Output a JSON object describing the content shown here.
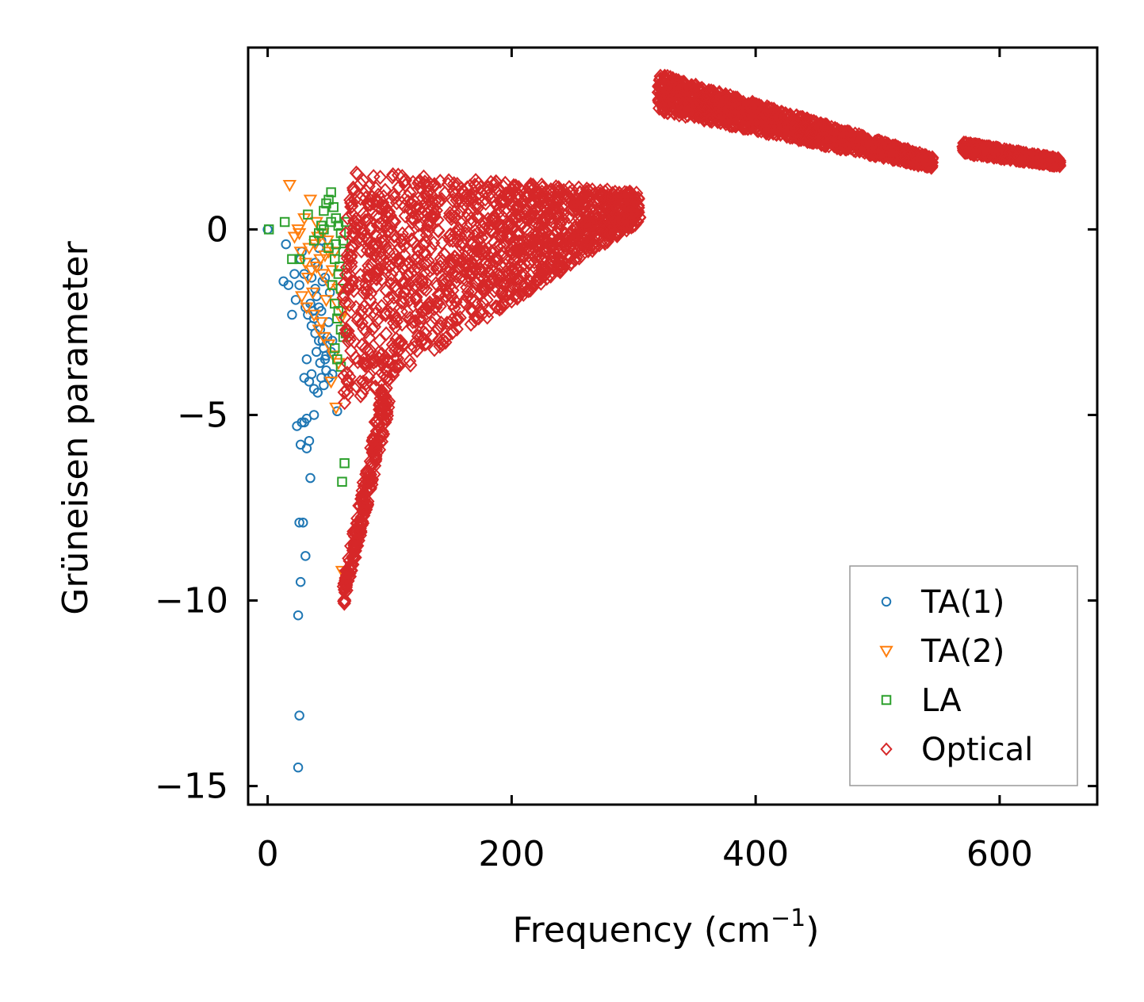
{
  "chart_data": {
    "type": "scatter",
    "title": "",
    "xlabel": "Frequency (cm",
    "xlabel_sup": "−1",
    "xlabel_close": ")",
    "ylabel": "Grüneisen parameter",
    "xlim": [
      -16,
      680
    ],
    "ylim": [
      -15.5,
      4.9
    ],
    "xticks": [
      {
        "value": 0,
        "label": "0"
      },
      {
        "value": 200,
        "label": "200"
      },
      {
        "value": 400,
        "label": "400"
      },
      {
        "value": 600,
        "label": "600"
      }
    ],
    "yticks": [
      {
        "value": 0,
        "label": "0"
      },
      {
        "value": -5,
        "label": "−5"
      },
      {
        "value": -10,
        "label": "−10"
      },
      {
        "value": -15,
        "label": "−15"
      }
    ],
    "legend_position": "bottom-right",
    "series": [
      {
        "name": "TA(1)",
        "label": "TA(1)",
        "marker": "circle",
        "color": "#1f77b4",
        "points": [
          [
            0,
            0
          ],
          [
            15,
            -0.4
          ],
          [
            13,
            -1.4
          ],
          [
            17,
            -1.5
          ],
          [
            20,
            -2.3
          ],
          [
            23,
            -1.9
          ],
          [
            26,
            -1.5
          ],
          [
            27,
            -0.8
          ],
          [
            28,
            -0.6
          ],
          [
            30,
            -1.2
          ],
          [
            31,
            -2.1
          ],
          [
            33,
            -2.3
          ],
          [
            35,
            -2.0
          ],
          [
            36,
            -2.6
          ],
          [
            38,
            -2.4
          ],
          [
            40,
            -1.8
          ],
          [
            41,
            -1.0
          ],
          [
            42,
            -0.5
          ],
          [
            43,
            -2.7
          ],
          [
            44,
            -2.2
          ],
          [
            45,
            -3.0
          ],
          [
            46,
            -3.2
          ],
          [
            47,
            -3.5
          ],
          [
            48,
            -3.8
          ],
          [
            49,
            -2.9
          ],
          [
            50,
            -2.5
          ],
          [
            51,
            -1.7
          ],
          [
            52,
            -3.3
          ],
          [
            53,
            -3.9
          ],
          [
            44,
            -4.0
          ],
          [
            41,
            -4.4
          ],
          [
            38,
            -4.3
          ],
          [
            36,
            -3.9
          ],
          [
            34,
            -4.1
          ],
          [
            32,
            -3.5
          ],
          [
            30,
            -4.0
          ],
          [
            43,
            -3.6
          ],
          [
            46,
            -4.2
          ],
          [
            40,
            -3.3
          ],
          [
            47,
            -1.3
          ],
          [
            44,
            -0.3
          ],
          [
            39,
            -0.9
          ],
          [
            24,
            -5.3
          ],
          [
            28,
            -5.2
          ],
          [
            30,
            -5.2
          ],
          [
            32,
            -5.1
          ],
          [
            38,
            -5.0
          ],
          [
            57,
            -4.9
          ],
          [
            34,
            -5.7
          ],
          [
            27,
            -5.8
          ],
          [
            32,
            -5.9
          ],
          [
            35,
            -6.7
          ],
          [
            26,
            -7.9
          ],
          [
            29,
            -7.9
          ],
          [
            31,
            -8.8
          ],
          [
            27,
            -9.5
          ],
          [
            25,
            -10.4
          ],
          [
            26,
            -13.1
          ],
          [
            25,
            -14.5
          ],
          [
            22,
            -1.2
          ],
          [
            36,
            -1.3
          ],
          [
            39,
            -1.6
          ],
          [
            42,
            -2.1
          ],
          [
            45,
            -1.4
          ],
          [
            48,
            -3.4
          ],
          [
            42,
            -3.0
          ],
          [
            39,
            -2.8
          ],
          [
            37,
            -2.2
          ],
          [
            50,
            -4.0
          ],
          [
            53,
            -3.0
          ]
        ]
      },
      {
        "name": "TA(2)",
        "label": "TA(2)",
        "marker": "triangle-down",
        "color": "#ff7f0e",
        "points": [
          [
            18,
            1.2
          ],
          [
            35,
            0.8
          ],
          [
            30,
            0.3
          ],
          [
            25,
            0.0
          ],
          [
            22,
            -0.2
          ],
          [
            27,
            -0.6
          ],
          [
            31,
            -0.9
          ],
          [
            33,
            -1.3
          ],
          [
            36,
            -1.1
          ],
          [
            39,
            -0.4
          ],
          [
            41,
            -0.2
          ],
          [
            43,
            -0.8
          ],
          [
            45,
            -1.2
          ],
          [
            47,
            -0.7
          ],
          [
            49,
            -0.3
          ],
          [
            51,
            -1.5
          ],
          [
            53,
            -1.1
          ],
          [
            55,
            -0.6
          ],
          [
            57,
            -2.0
          ],
          [
            60,
            -2.4
          ],
          [
            28,
            -1.8
          ],
          [
            32,
            -2.1
          ],
          [
            38,
            -2.3
          ],
          [
            42,
            -2.7
          ],
          [
            46,
            -2.9
          ],
          [
            50,
            -3.1
          ],
          [
            54,
            -3.4
          ],
          [
            58,
            -3.6
          ],
          [
            52,
            -4.1
          ],
          [
            56,
            -4.8
          ],
          [
            63,
            -9.3
          ],
          [
            61,
            -9.2
          ],
          [
            37,
            -1.7
          ],
          [
            40,
            -1.0
          ],
          [
            48,
            -1.9
          ],
          [
            58,
            -1.6
          ],
          [
            26,
            -0.1
          ],
          [
            34,
            -0.5
          ],
          [
            44,
            -2.5
          ],
          [
            62,
            -2.2
          ],
          [
            50,
            -0.6
          ],
          [
            45,
            -0.1
          ],
          [
            40,
            0.2
          ]
        ]
      },
      {
        "name": "LA",
        "label": "LA",
        "marker": "square",
        "color": "#2ca02c",
        "points": [
          [
            1,
            0.0
          ],
          [
            14,
            0.2
          ],
          [
            26,
            -0.8
          ],
          [
            20,
            -0.8
          ],
          [
            33,
            0.4
          ],
          [
            38,
            -0.3
          ],
          [
            42,
            -0.1
          ],
          [
            44,
            0.1
          ],
          [
            46,
            0.5
          ],
          [
            48,
            0.7
          ],
          [
            50,
            0.8
          ],
          [
            52,
            1.0
          ],
          [
            54,
            0.6
          ],
          [
            56,
            0.3
          ],
          [
            58,
            0.1
          ],
          [
            60,
            -0.1
          ],
          [
            62,
            -0.3
          ],
          [
            50,
            -0.5
          ],
          [
            55,
            -0.8
          ],
          [
            58,
            -1.2
          ],
          [
            60,
            -1.6
          ],
          [
            55,
            -2.0
          ],
          [
            57,
            -2.4
          ],
          [
            60,
            -2.7
          ],
          [
            62,
            -2.9
          ],
          [
            64,
            -2.8
          ],
          [
            55,
            -3.2
          ],
          [
            57,
            -3.5
          ],
          [
            60,
            -3.7
          ],
          [
            63,
            -6.3
          ],
          [
            61,
            -6.8
          ],
          [
            46,
            0.0
          ],
          [
            52,
            0.2
          ],
          [
            56,
            -0.4
          ],
          [
            59,
            -1.0
          ],
          [
            62,
            -0.6
          ],
          [
            64,
            0.2
          ],
          [
            53,
            -1.5
          ],
          [
            58,
            -2.2
          ]
        ]
      },
      {
        "name": "Optical",
        "label": "Optical",
        "marker": "diamond",
        "color": "#d62728",
        "points": [],
        "groups": [
          {
            "x0": 62,
            "x1": 305,
            "y_start": -1.6,
            "y_end": 0.6,
            "spread_start": 3.2,
            "spread_end": 0.4
          },
          {
            "x0": 320,
            "x1": 545,
            "y_start": 3.7,
            "y_end": 1.8,
            "spread_start": 0.5,
            "spread_end": 0.15
          },
          {
            "x0": 570,
            "x1": 650,
            "y_start": 2.2,
            "y_end": 1.8,
            "spread_start": 0.15,
            "spread_end": 0.1
          },
          {
            "x0": 62,
            "x1": 100,
            "y_start": -9.9,
            "y_end": -4.0,
            "spread_start": 0.4,
            "spread_end": 0.8
          }
        ]
      }
    ]
  }
}
